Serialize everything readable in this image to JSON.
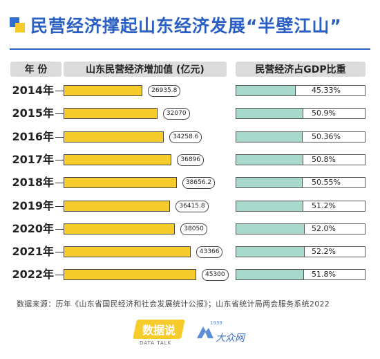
{
  "title": "民营经济撑起山东经济发展“半壁江山”",
  "headers": {
    "year": "年 份",
    "value": "山东民营经济增加值 (亿元)",
    "share": "民营经济占GDP比重"
  },
  "chart_data": {
    "type": "bar",
    "orientation": "horizontal",
    "categories": [
      "2014年",
      "2015年",
      "2016年",
      "2017年",
      "2018年",
      "2019年",
      "2020年",
      "2021年",
      "2022年"
    ],
    "series": [
      {
        "name": "山东民营经济增加值 (亿元)",
        "values": [
          26935.8,
          32070,
          34258.6,
          36896,
          38656.2,
          36415.8,
          38050,
          43366,
          45300
        ],
        "labels": [
          "26935.8",
          "32070",
          "34258.6",
          "36896",
          "38656.2",
          "36415.8",
          "38050",
          "43366",
          "45300"
        ],
        "color": "#f6cc2d"
      },
      {
        "name": "民营经济占GDP比重",
        "values": [
          45.33,
          50.9,
          50.36,
          50.8,
          50.55,
          51.2,
          52.0,
          52.2,
          51.8
        ],
        "labels": [
          "45.33%",
          "50.9%",
          "50.36%",
          "50.8%",
          "50.55%",
          "51.2%",
          "52.0%",
          "52.2%",
          "51.8%"
        ],
        "color": "#a9d8cc"
      }
    ]
  },
  "source": "数据来源：历年《山东省国民经济和社会发展统计公报》；山东省统计局两会服务系统2022",
  "logos": {
    "shujushuo": "数据说",
    "shujushuo_sub": "DATA TALK",
    "second_year": "1939",
    "second_name": "大众网"
  }
}
